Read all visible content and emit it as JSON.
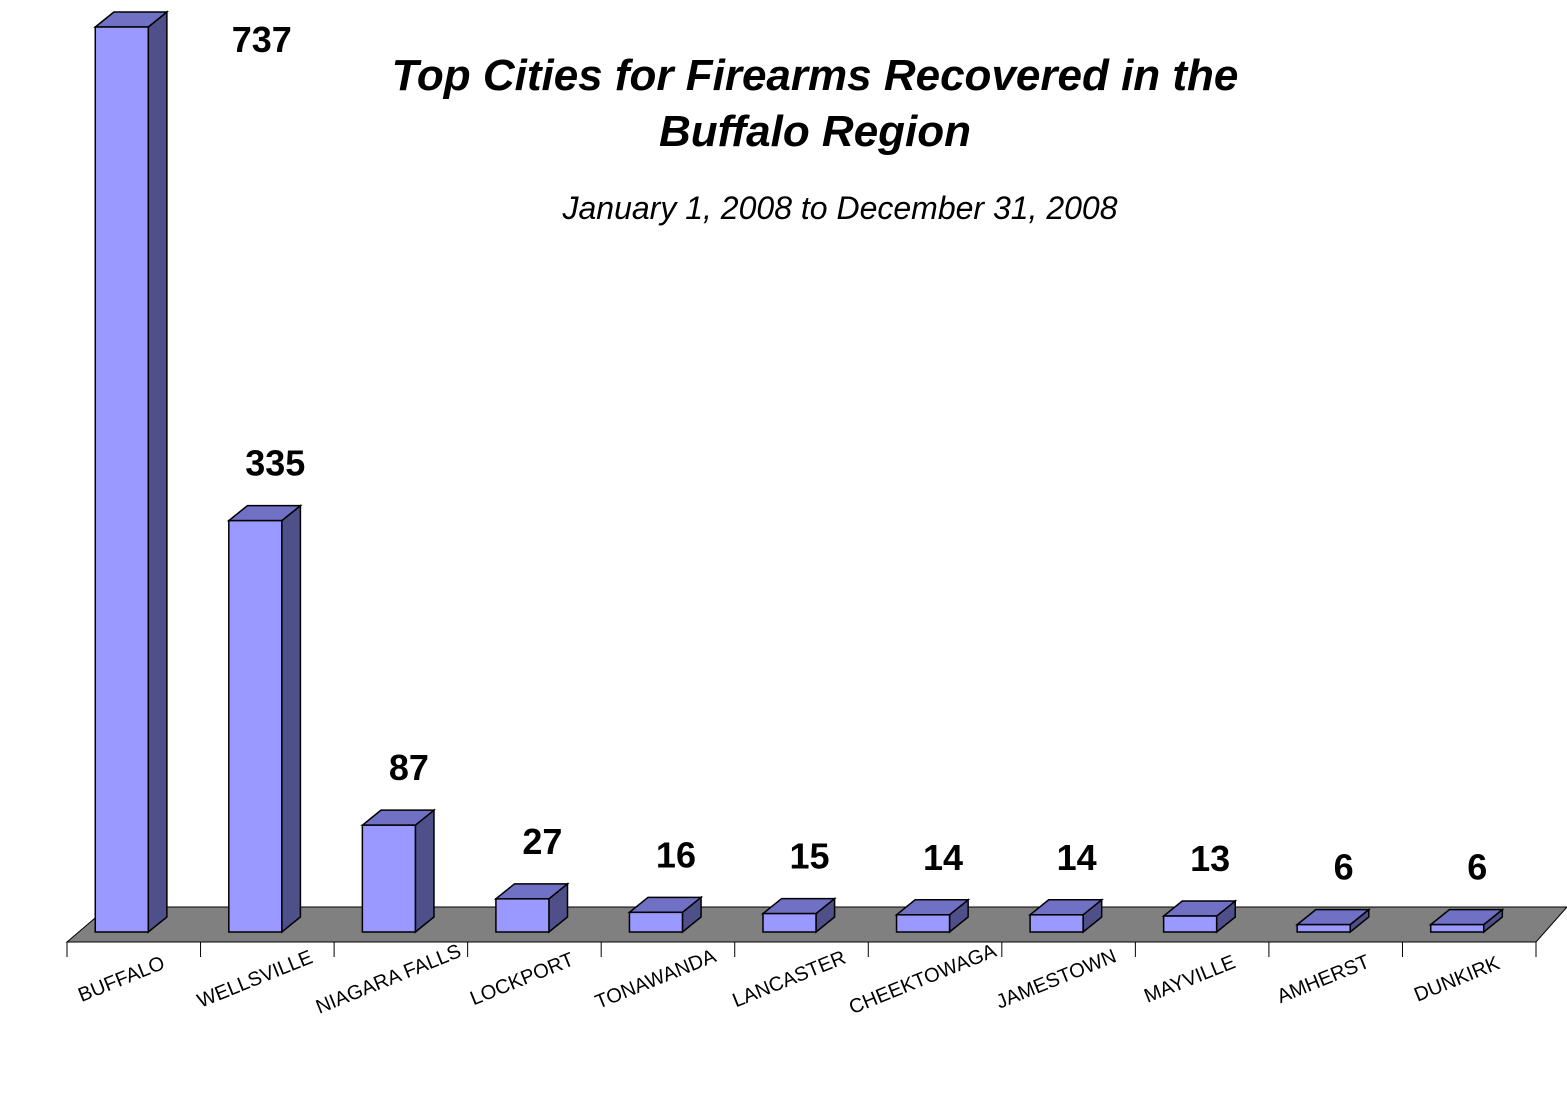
{
  "chart_data": {
    "type": "bar",
    "style": "3d-column",
    "title_line1": "Top Cities for Firearms Recovered in the",
    "title_line2": "Buffalo Region",
    "subtitle": "January 1, 2008 to December 31, 2008",
    "categories": [
      "BUFFALO",
      "WELLSVILLE",
      "NIAGARA FALLS",
      "LOCKPORT",
      "TONAWANDA",
      "LANCASTER",
      "CHEEKTOWAGA",
      "JAMESTOWN",
      "MAYVILLE",
      "AMHERST",
      "DUNKIRK"
    ],
    "values": [
      737,
      335,
      87,
      27,
      16,
      15,
      14,
      14,
      13,
      6,
      6
    ],
    "value_axis_visible": false,
    "grid": false,
    "legend": "none",
    "colors": {
      "bar_front": "#9999ff",
      "bar_side": "#4f4f8a",
      "bar_top": "#7070c4",
      "floor": "#808080",
      "outline": "#000000"
    }
  }
}
